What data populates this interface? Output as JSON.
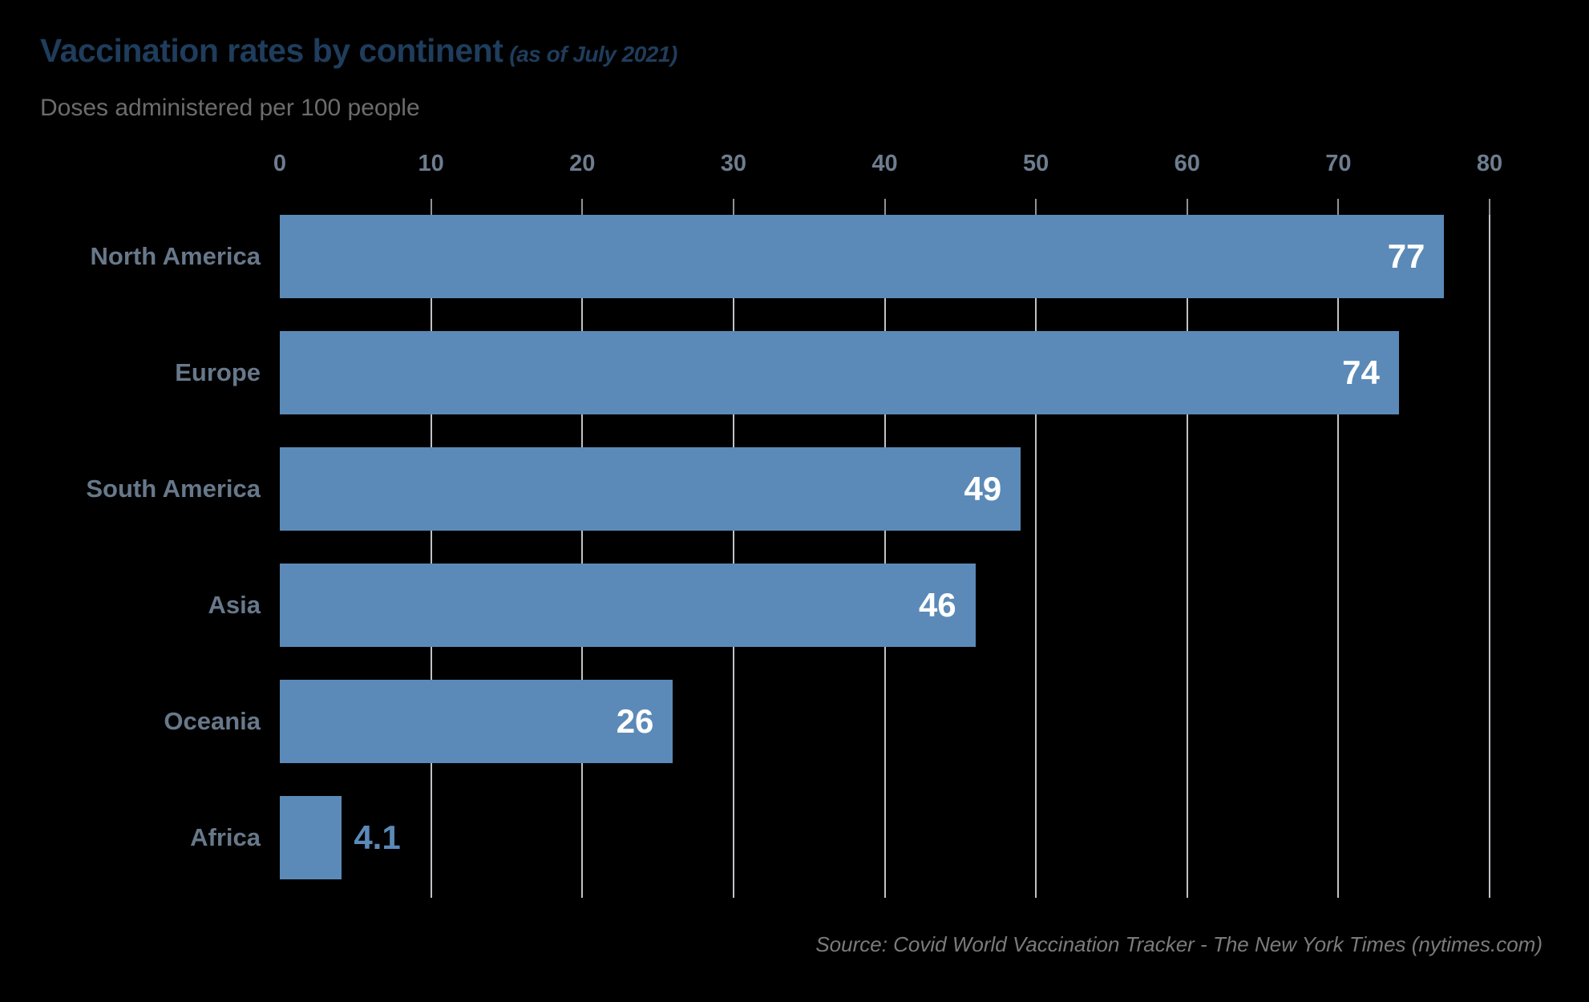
{
  "chart_data": {
    "type": "bar",
    "orientation": "horizontal",
    "title": "Vaccination rates by continent",
    "title_suffix": "(as of July 2021)",
    "subtitle": "Doses administered per 100 people",
    "source": "Source: Covid World Vaccination Tracker - The New York Times (nytimes.com)",
    "categories": [
      "North America",
      "Europe",
      "South America",
      "Asia",
      "Oceania",
      "Africa"
    ],
    "values": [
      77,
      74,
      49,
      46,
      26,
      4.1
    ],
    "value_labels": [
      "77",
      "74",
      "49",
      "46",
      "26",
      "4.1"
    ],
    "xlim": [
      0,
      80
    ],
    "xticks": [
      "0",
      "10",
      "20",
      "30",
      "40",
      "50",
      "60",
      "70",
      "80"
    ],
    "grid": true,
    "legend": "none",
    "colors": {
      "background": "#000000",
      "bar": "#5b8ab8",
      "title": "#1f3d5c",
      "subtitle": "#6c6c6c",
      "category_label": "#67788a",
      "tick_label": "#6d7d8f",
      "gridline": "#c0c3c6",
      "value_inside": "#ffffff",
      "value_outside": "#5b8ab8",
      "source": "#7b7b7b"
    }
  }
}
